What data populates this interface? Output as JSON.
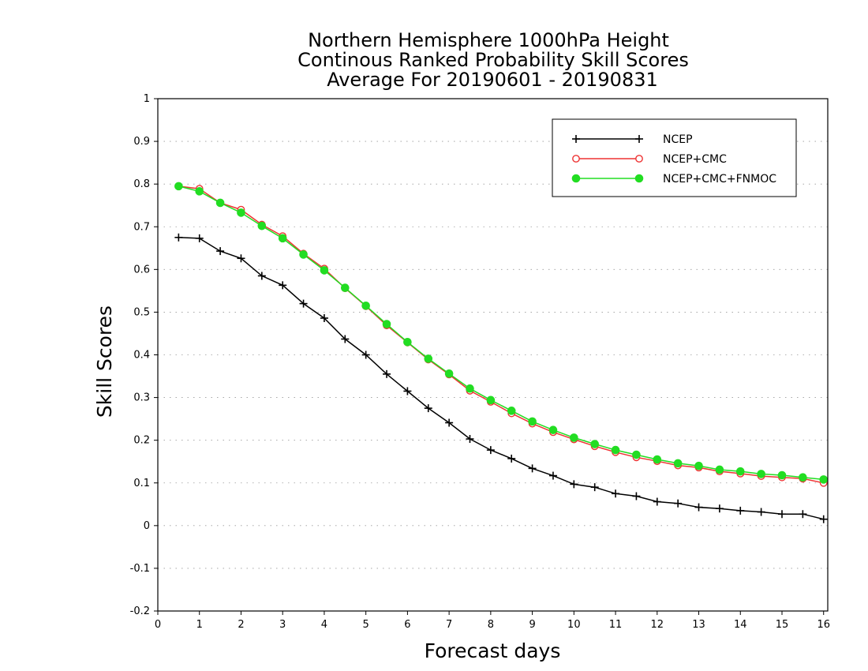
{
  "chart_data": {
    "type": "line",
    "title_lines": [
      "Northern Hemisphere 1000hPa Height",
      "Continous Ranked Probability Skill Scores",
      "Average For 20190601 - 20190831"
    ],
    "xlabel": "Forecast days",
    "ylabel": "Skill Scores",
    "xlim": [
      0,
      16.1
    ],
    "ylim": [
      -0.2,
      1
    ],
    "x_ticks": [
      0,
      1,
      2,
      3,
      4,
      5,
      6,
      7,
      8,
      9,
      10,
      11,
      12,
      13,
      14,
      15,
      16
    ],
    "y_ticks": [
      -0.2,
      -0.1,
      0,
      0.1,
      0.2,
      0.3,
      0.4,
      0.5,
      0.6,
      0.7,
      0.8,
      0.9,
      1
    ],
    "y_tick_labels": [
      "-0.2",
      "-0.1",
      "0",
      "0.1",
      "0.2",
      "0.3",
      "0.4",
      "0.5",
      "0.6",
      "0.7",
      "0.8",
      "0.9",
      "1"
    ],
    "grid": "horizontal dotted",
    "legend_position": "top-right",
    "x": [
      0.5,
      1,
      1.5,
      2,
      2.5,
      3,
      3.5,
      4,
      4.5,
      5,
      5.5,
      6,
      6.5,
      7,
      7.5,
      8,
      8.5,
      9,
      9.5,
      10,
      10.5,
      11,
      11.5,
      12,
      12.5,
      13,
      13.5,
      14,
      14.5,
      15,
      15.5,
      16
    ],
    "series": [
      {
        "name": "NCEP",
        "color": "#000000",
        "marker": "plus",
        "values": [
          0.675,
          0.673,
          0.643,
          0.626,
          0.585,
          0.563,
          0.52,
          0.486,
          0.437,
          0.4,
          0.355,
          0.315,
          0.275,
          0.241,
          0.203,
          0.177,
          0.157,
          0.134,
          0.117,
          0.097,
          0.09,
          0.075,
          0.069,
          0.056,
          0.052,
          0.043,
          0.04,
          0.035,
          0.032,
          0.027,
          0.027,
          0.015
        ]
      },
      {
        "name": "NCEP+CMC",
        "color": "#ee3333",
        "marker": "circle-open",
        "values": [
          0.795,
          0.789,
          0.756,
          0.74,
          0.705,
          0.678,
          0.637,
          0.602,
          0.556,
          0.514,
          0.469,
          0.429,
          0.389,
          0.354,
          0.316,
          0.29,
          0.263,
          0.239,
          0.219,
          0.202,
          0.186,
          0.172,
          0.16,
          0.151,
          0.141,
          0.136,
          0.127,
          0.122,
          0.116,
          0.113,
          0.11,
          0.1
        ]
      },
      {
        "name": "NCEP+CMC+FNMOC",
        "color": "#22dd22",
        "marker": "circle-filled",
        "values": [
          0.795,
          0.783,
          0.756,
          0.733,
          0.702,
          0.673,
          0.635,
          0.598,
          0.557,
          0.515,
          0.472,
          0.43,
          0.391,
          0.356,
          0.321,
          0.294,
          0.269,
          0.244,
          0.224,
          0.206,
          0.191,
          0.177,
          0.166,
          0.155,
          0.146,
          0.14,
          0.131,
          0.127,
          0.121,
          0.118,
          0.113,
          0.108
        ]
      }
    ]
  }
}
